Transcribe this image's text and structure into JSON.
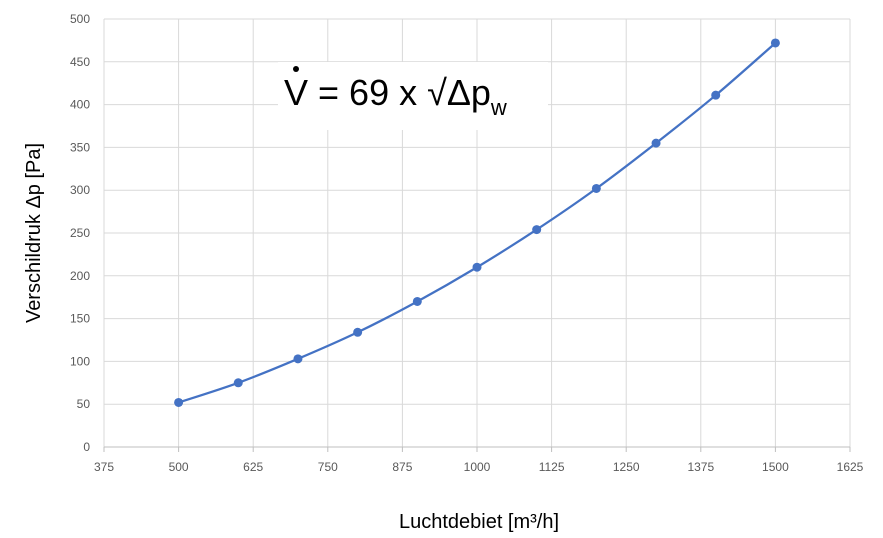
{
  "chart_data": {
    "type": "line",
    "xlabel": "Luchtdebiet [m³/h]",
    "ylabel": "Verschildruk Δp [Pa]",
    "xlim": [
      375,
      1625
    ],
    "ylim": [
      0,
      500
    ],
    "x_ticks": [
      "375",
      "500",
      "625",
      "750",
      "875",
      "1000",
      "1125",
      "1250",
      "1375",
      "1500",
      "1625"
    ],
    "y_ticks": [
      "0",
      "50",
      "100",
      "150",
      "200",
      "250",
      "300",
      "350",
      "400",
      "450",
      "500"
    ],
    "grid": true,
    "series": [
      {
        "color": "#4472c4",
        "x": [
          500,
          600,
          700,
          800,
          900,
          1000,
          1100,
          1200,
          1300,
          1400,
          1500
        ],
        "y": [
          52,
          75,
          103,
          134,
          170,
          210,
          254,
          302,
          355,
          411,
          472
        ]
      }
    ],
    "annotation": {
      "symbol": "V",
      "equation": " = 69 x √Δp",
      "subscript": "w"
    }
  }
}
